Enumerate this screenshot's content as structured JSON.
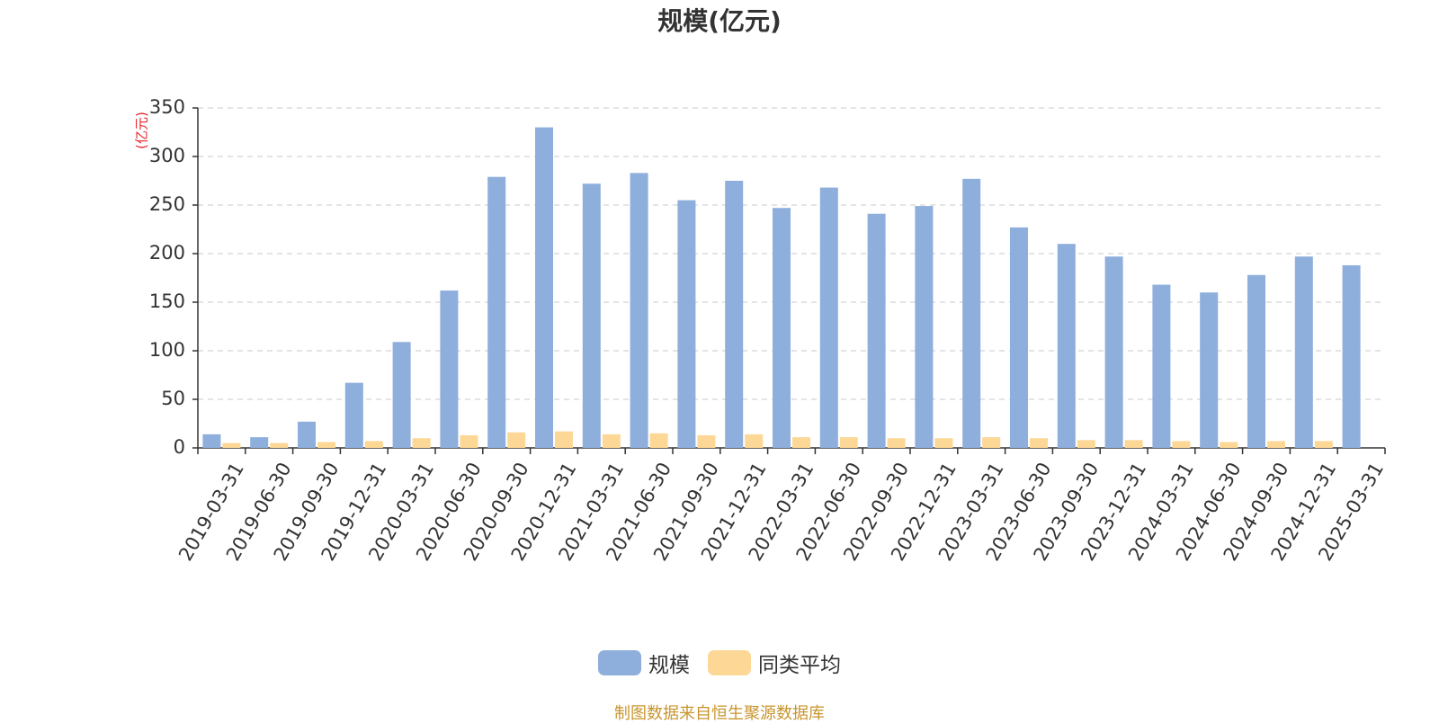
{
  "chart_data": {
    "type": "bar",
    "title": "规模(亿元)",
    "ylabel": "(亿元)",
    "xlabel": "",
    "ylim": [
      0,
      350
    ],
    "yticks": [
      0,
      50,
      100,
      150,
      200,
      250,
      300,
      350
    ],
    "grid": true,
    "legend_position": "bottom",
    "categories": [
      "2019-03-31",
      "2019-06-30",
      "2019-09-30",
      "2019-12-31",
      "2020-03-31",
      "2020-06-30",
      "2020-09-30",
      "2020-12-31",
      "2021-03-31",
      "2021-06-30",
      "2021-09-30",
      "2021-12-31",
      "2022-03-31",
      "2022-06-30",
      "2022-09-30",
      "2022-12-31",
      "2023-03-31",
      "2023-06-30",
      "2023-09-30",
      "2023-12-31",
      "2024-03-31",
      "2024-06-30",
      "2024-09-30",
      "2024-12-31",
      "2025-03-31"
    ],
    "series": [
      {
        "name": "规模",
        "color": "#8eaedc",
        "values": [
          14,
          11,
          27,
          67,
          109,
          162,
          279,
          330,
          272,
          283,
          255,
          275,
          247,
          268,
          241,
          249,
          277,
          227,
          210,
          197,
          168,
          160,
          178,
          197,
          188
        ]
      },
      {
        "name": "同类平均",
        "color": "#fcd796",
        "values": [
          5,
          5,
          6,
          7,
          10,
          13,
          16,
          17,
          14,
          15,
          13,
          14,
          11,
          11,
          10,
          10,
          11,
          10,
          8,
          8,
          7,
          6,
          7,
          7,
          null
        ]
      }
    ]
  },
  "source_note": "制图数据来自恒生聚源数据库"
}
